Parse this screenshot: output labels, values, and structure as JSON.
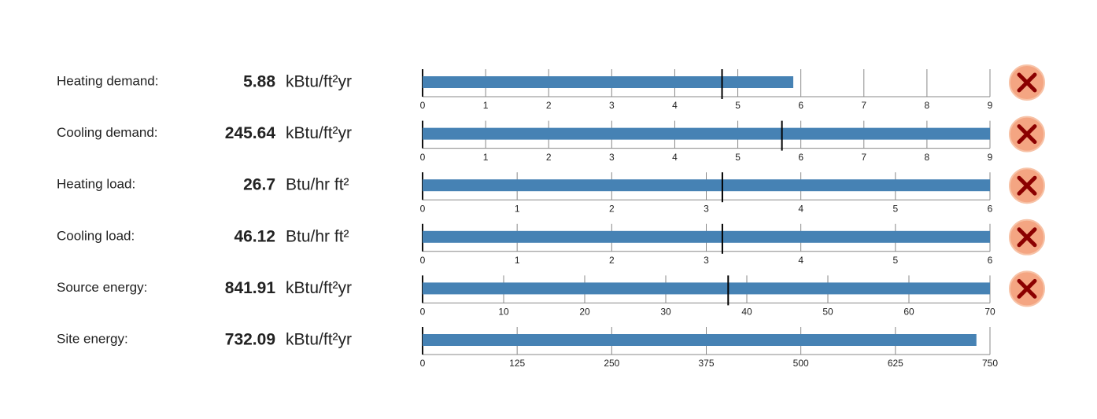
{
  "rows": [
    {
      "label": "Heating demand:",
      "value": 5.88,
      "unit": "kBtu/ft²yr",
      "xlim": [
        0,
        9
      ],
      "ticks": [
        0,
        1,
        2,
        3,
        4,
        5,
        6,
        7,
        8,
        9
      ],
      "target": 4.75,
      "fail": true
    },
    {
      "label": "Cooling demand:",
      "value": 245.64,
      "unit": "kBtu/ft²yr",
      "xlim": [
        0,
        9
      ],
      "ticks": [
        0,
        1,
        2,
        3,
        4,
        5,
        6,
        7,
        8,
        9
      ],
      "target": 5.7,
      "fail": true
    },
    {
      "label": "Heating load:",
      "value": 26.7,
      "unit": "Btu/hr ft²",
      "xlim": [
        0,
        6
      ],
      "ticks": [
        0,
        1,
        2,
        3,
        4,
        5,
        6
      ],
      "target": 3.17,
      "fail": true
    },
    {
      "label": "Cooling load:",
      "value": 46.12,
      "unit": "Btu/hr ft²",
      "xlim": [
        0,
        6
      ],
      "ticks": [
        0,
        1,
        2,
        3,
        4,
        5,
        6
      ],
      "target": 3.17,
      "fail": true
    },
    {
      "label": "Source energy:",
      "value": 841.91,
      "unit": "kBtu/ft²yr",
      "xlim": [
        0,
        70
      ],
      "ticks": [
        0,
        10,
        20,
        30,
        40,
        50,
        60,
        70
      ],
      "target": 37.7,
      "fail": true
    },
    {
      "label": "Site energy:",
      "value": 732.09,
      "unit": "kBtu/ft²yr",
      "xlim": [
        0,
        750
      ],
      "ticks": [
        0,
        125,
        250,
        375,
        500,
        625,
        750
      ],
      "target": null,
      "fail": false
    }
  ]
}
